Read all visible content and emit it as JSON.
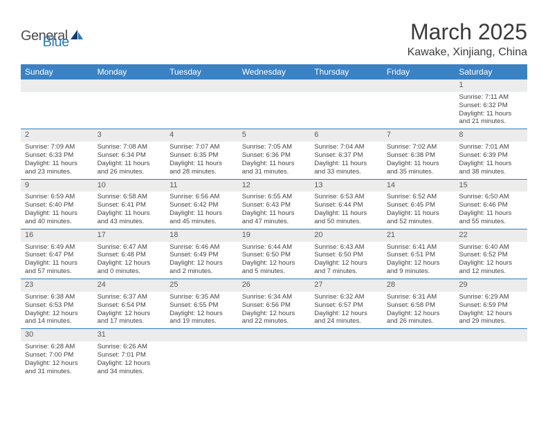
{
  "brand": {
    "part1": "General",
    "part2": "Blue"
  },
  "title": "March 2025",
  "location": "Kawake, Xinjiang, China",
  "colors": {
    "header_bg": "#3b82c4",
    "header_text": "#ffffff",
    "daynum_bg": "#ececec",
    "border": "#2a7ab8",
    "body_text": "#444444"
  },
  "weekdays": [
    "Sunday",
    "Monday",
    "Tuesday",
    "Wednesday",
    "Thursday",
    "Friday",
    "Saturday"
  ],
  "weeks": [
    {
      "nums": [
        "",
        "",
        "",
        "",
        "",
        "",
        "1"
      ],
      "cells": [
        null,
        null,
        null,
        null,
        null,
        null,
        {
          "rise": "Sunrise: 7:11 AM",
          "set": "Sunset: 6:32 PM",
          "day": "Daylight: 11 hours and 21 minutes."
        }
      ]
    },
    {
      "nums": [
        "2",
        "3",
        "4",
        "5",
        "6",
        "7",
        "8"
      ],
      "cells": [
        {
          "rise": "Sunrise: 7:09 AM",
          "set": "Sunset: 6:33 PM",
          "day": "Daylight: 11 hours and 23 minutes."
        },
        {
          "rise": "Sunrise: 7:08 AM",
          "set": "Sunset: 6:34 PM",
          "day": "Daylight: 11 hours and 26 minutes."
        },
        {
          "rise": "Sunrise: 7:07 AM",
          "set": "Sunset: 6:35 PM",
          "day": "Daylight: 11 hours and 28 minutes."
        },
        {
          "rise": "Sunrise: 7:05 AM",
          "set": "Sunset: 6:36 PM",
          "day": "Daylight: 11 hours and 31 minutes."
        },
        {
          "rise": "Sunrise: 7:04 AM",
          "set": "Sunset: 6:37 PM",
          "day": "Daylight: 11 hours and 33 minutes."
        },
        {
          "rise": "Sunrise: 7:02 AM",
          "set": "Sunset: 6:38 PM",
          "day": "Daylight: 11 hours and 35 minutes."
        },
        {
          "rise": "Sunrise: 7:01 AM",
          "set": "Sunset: 6:39 PM",
          "day": "Daylight: 11 hours and 38 minutes."
        }
      ]
    },
    {
      "nums": [
        "9",
        "10",
        "11",
        "12",
        "13",
        "14",
        "15"
      ],
      "cells": [
        {
          "rise": "Sunrise: 6:59 AM",
          "set": "Sunset: 6:40 PM",
          "day": "Daylight: 11 hours and 40 minutes."
        },
        {
          "rise": "Sunrise: 6:58 AM",
          "set": "Sunset: 6:41 PM",
          "day": "Daylight: 11 hours and 43 minutes."
        },
        {
          "rise": "Sunrise: 6:56 AM",
          "set": "Sunset: 6:42 PM",
          "day": "Daylight: 11 hours and 45 minutes."
        },
        {
          "rise": "Sunrise: 6:55 AM",
          "set": "Sunset: 6:43 PM",
          "day": "Daylight: 11 hours and 47 minutes."
        },
        {
          "rise": "Sunrise: 6:53 AM",
          "set": "Sunset: 6:44 PM",
          "day": "Daylight: 11 hours and 50 minutes."
        },
        {
          "rise": "Sunrise: 6:52 AM",
          "set": "Sunset: 6:45 PM",
          "day": "Daylight: 11 hours and 52 minutes."
        },
        {
          "rise": "Sunrise: 6:50 AM",
          "set": "Sunset: 6:46 PM",
          "day": "Daylight: 11 hours and 55 minutes."
        }
      ]
    },
    {
      "nums": [
        "16",
        "17",
        "18",
        "19",
        "20",
        "21",
        "22"
      ],
      "cells": [
        {
          "rise": "Sunrise: 6:49 AM",
          "set": "Sunset: 6:47 PM",
          "day": "Daylight: 11 hours and 57 minutes."
        },
        {
          "rise": "Sunrise: 6:47 AM",
          "set": "Sunset: 6:48 PM",
          "day": "Daylight: 12 hours and 0 minutes."
        },
        {
          "rise": "Sunrise: 6:46 AM",
          "set": "Sunset: 6:49 PM",
          "day": "Daylight: 12 hours and 2 minutes."
        },
        {
          "rise": "Sunrise: 6:44 AM",
          "set": "Sunset: 6:50 PM",
          "day": "Daylight: 12 hours and 5 minutes."
        },
        {
          "rise": "Sunrise: 6:43 AM",
          "set": "Sunset: 6:50 PM",
          "day": "Daylight: 12 hours and 7 minutes."
        },
        {
          "rise": "Sunrise: 6:41 AM",
          "set": "Sunset: 6:51 PM",
          "day": "Daylight: 12 hours and 9 minutes."
        },
        {
          "rise": "Sunrise: 6:40 AM",
          "set": "Sunset: 6:52 PM",
          "day": "Daylight: 12 hours and 12 minutes."
        }
      ]
    },
    {
      "nums": [
        "23",
        "24",
        "25",
        "26",
        "27",
        "28",
        "29"
      ],
      "cells": [
        {
          "rise": "Sunrise: 6:38 AM",
          "set": "Sunset: 6:53 PM",
          "day": "Daylight: 12 hours and 14 minutes."
        },
        {
          "rise": "Sunrise: 6:37 AM",
          "set": "Sunset: 6:54 PM",
          "day": "Daylight: 12 hours and 17 minutes."
        },
        {
          "rise": "Sunrise: 6:35 AM",
          "set": "Sunset: 6:55 PM",
          "day": "Daylight: 12 hours and 19 minutes."
        },
        {
          "rise": "Sunrise: 6:34 AM",
          "set": "Sunset: 6:56 PM",
          "day": "Daylight: 12 hours and 22 minutes."
        },
        {
          "rise": "Sunrise: 6:32 AM",
          "set": "Sunset: 6:57 PM",
          "day": "Daylight: 12 hours and 24 minutes."
        },
        {
          "rise": "Sunrise: 6:31 AM",
          "set": "Sunset: 6:58 PM",
          "day": "Daylight: 12 hours and 26 minutes."
        },
        {
          "rise": "Sunrise: 6:29 AM",
          "set": "Sunset: 6:59 PM",
          "day": "Daylight: 12 hours and 29 minutes."
        }
      ]
    },
    {
      "nums": [
        "30",
        "31",
        "",
        "",
        "",
        "",
        ""
      ],
      "cells": [
        {
          "rise": "Sunrise: 6:28 AM",
          "set": "Sunset: 7:00 PM",
          "day": "Daylight: 12 hours and 31 minutes."
        },
        {
          "rise": "Sunrise: 6:26 AM",
          "set": "Sunset: 7:01 PM",
          "day": "Daylight: 12 hours and 34 minutes."
        },
        null,
        null,
        null,
        null,
        null
      ]
    }
  ]
}
